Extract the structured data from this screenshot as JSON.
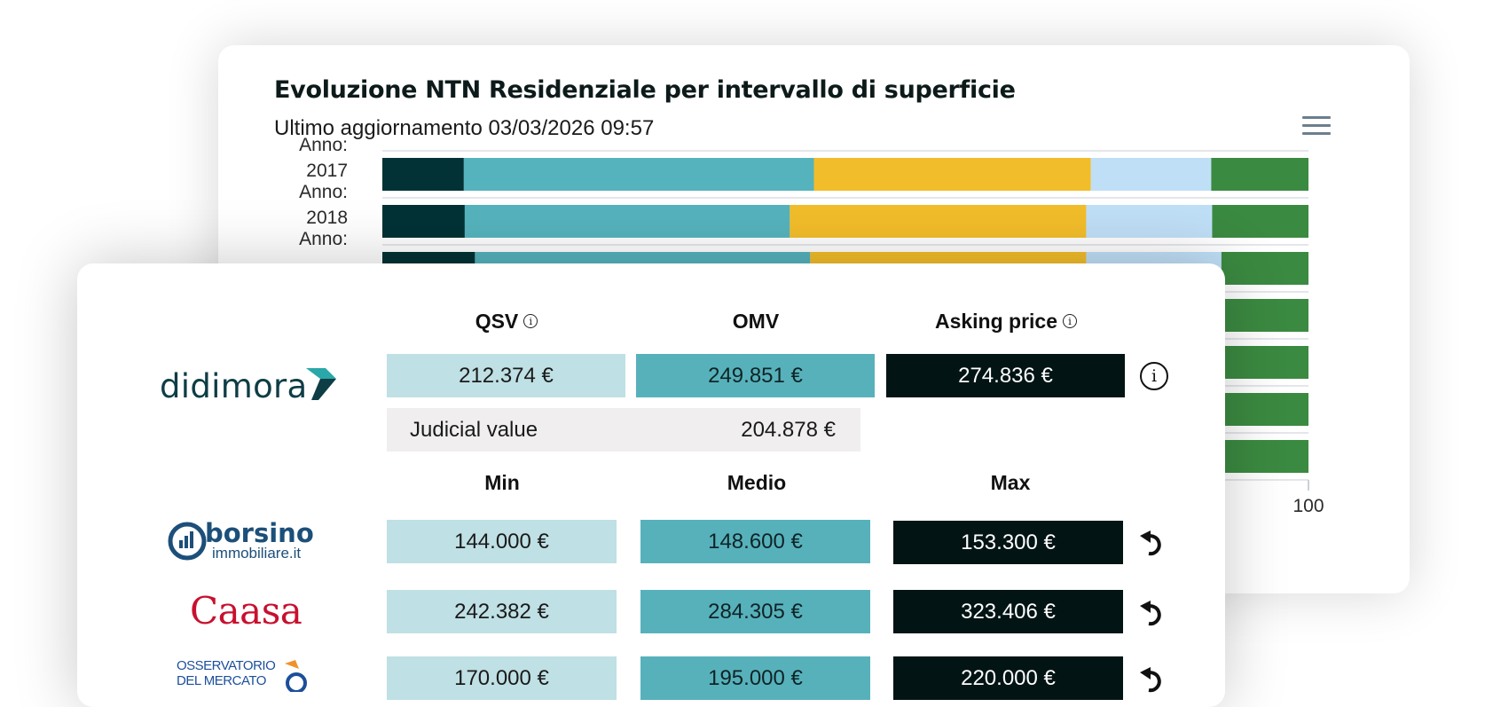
{
  "chart": {
    "title": "Evoluzione NTN Residenziale per intervallo di superficie",
    "subtitle": "Ultimo aggiornamento 03/03/2026 09:57",
    "menu_icon": "hamburger-menu-icon"
  },
  "chart_data": {
    "type": "bar",
    "orientation": "horizontal",
    "stacked": "percent",
    "title": "Evoluzione NTN Residenziale per intervallo di superficie",
    "subtitle": "Ultimo aggiornamento 03/03/2026 09:57",
    "categories": [
      "Anno: 2017",
      "Anno: 2018",
      "Anno:",
      "",
      "",
      "",
      ""
    ],
    "category_label_lines": [
      [
        "Anno:",
        "2017"
      ],
      [
        "Anno:",
        "2018"
      ],
      [
        "Anno:"
      ],
      [],
      [],
      [],
      []
    ],
    "series_colors": [
      "#023236",
      "#55b3bd",
      "#f2bd2a",
      "#bfdff7",
      "#3b8a41"
    ],
    "series": [
      {
        "values": [
          8.8,
          8.9,
          10.0,
          null,
          null,
          null,
          null
        ]
      },
      {
        "values": [
          37.8,
          35.1,
          36.2,
          null,
          null,
          null,
          null
        ]
      },
      {
        "values": [
          29.9,
          32.0,
          29.8,
          null,
          null,
          null,
          null
        ]
      },
      {
        "values": [
          13.0,
          13.6,
          14.6,
          null,
          null,
          null,
          null
        ]
      },
      {
        "values": [
          10.5,
          10.4,
          9.4,
          9.4,
          9.4,
          9.4,
          9.4
        ]
      }
    ],
    "xlim": [
      0,
      100
    ],
    "x_ticks_visible": [
      "100"
    ],
    "legend": "none"
  },
  "valuation": {
    "headers": {
      "qsv": "QSV",
      "omv": "OMV",
      "asking": "Asking price",
      "min": "Min",
      "medio": "Medio",
      "max": "Max"
    },
    "didimora": {
      "logo_text": "didimora",
      "qsv": "212.374 €",
      "omv": "249.851 €",
      "asking": "274.836 €",
      "judicial_label": "Judicial value",
      "judicial_value": "204.878 €"
    },
    "rows": [
      {
        "source": "borsino",
        "logo_top": "borsino",
        "logo_bottom": "immobiliare.it",
        "min": "144.000 €",
        "medio": "148.600 €",
        "max": "153.300 €"
      },
      {
        "source": "caasa",
        "logo_text": "Caasa",
        "min": "242.382 €",
        "medio": "284.305 €",
        "max": "323.406 €"
      },
      {
        "source": "osservatorio",
        "logo_top": "OSSERVATORIO",
        "logo_bottom": "DEL MERCATO",
        "min": "170.000 €",
        "medio": "195.000 €",
        "max": "220.000 €"
      }
    ],
    "colors": {
      "light": "#bfe0e4",
      "mid": "#57b1bb",
      "dark": "#031414",
      "judicial_bg": "#f0eeee"
    }
  }
}
